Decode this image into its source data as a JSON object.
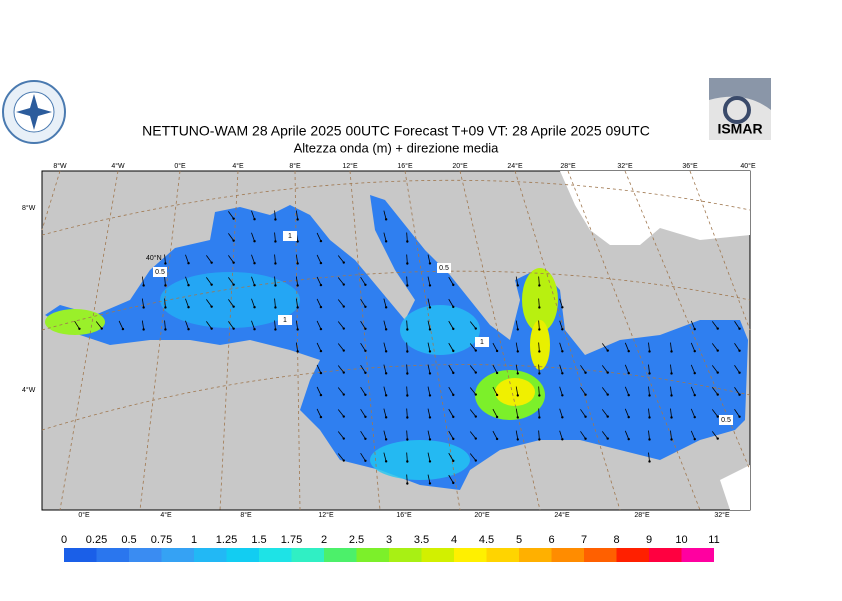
{
  "header": {
    "title": "NETTUNO-WAM  28   Aprile  2025 00UTC Forecast T+09 VT: 28   Aprile  2025 09UTC",
    "subtitle": "Altezza onda (m) + direzione media"
  },
  "logo_right": "ISMAR",
  "top_lon_labels": [
    "8°W",
    "4°W",
    "0°E",
    "4°E",
    "8°E",
    "12°E",
    "16°E",
    "20°E",
    "24°E",
    "28°E",
    "32°E",
    "36°E",
    "40°E"
  ],
  "bottom_lon_labels": [
    "0°E",
    "4°E",
    "8°E",
    "12°E",
    "16°E",
    "20°E",
    "24°E",
    "28°E",
    "32°E"
  ],
  "left_labels": [
    "8°W",
    "4°W"
  ],
  "inner_label": "40°N",
  "contour_labels": [
    "0.5",
    "1",
    "1",
    "0.5",
    "1",
    "0.5"
  ],
  "colorbar": {
    "labels": [
      "0",
      "0.25",
      "0.5",
      "0.75",
      "1",
      "1.25",
      "1.5",
      "1.75",
      "2",
      "2.5",
      "3",
      "3.5",
      "4",
      "4.5",
      "5",
      "6",
      "7",
      "8",
      "9",
      "10",
      "11"
    ],
    "colors": [
      "#1a5fe8",
      "#2a76ee",
      "#3a8cf2",
      "#35a2f4",
      "#22b8f5",
      "#12cdf2",
      "#1ee3e6",
      "#30efc4",
      "#4cf06a",
      "#7cf02a",
      "#a8f014",
      "#d2f000",
      "#fff000",
      "#ffd400",
      "#ffb000",
      "#ff8c00",
      "#ff6000",
      "#ff2000",
      "#ff0040",
      "#ff00a0"
    ]
  }
}
